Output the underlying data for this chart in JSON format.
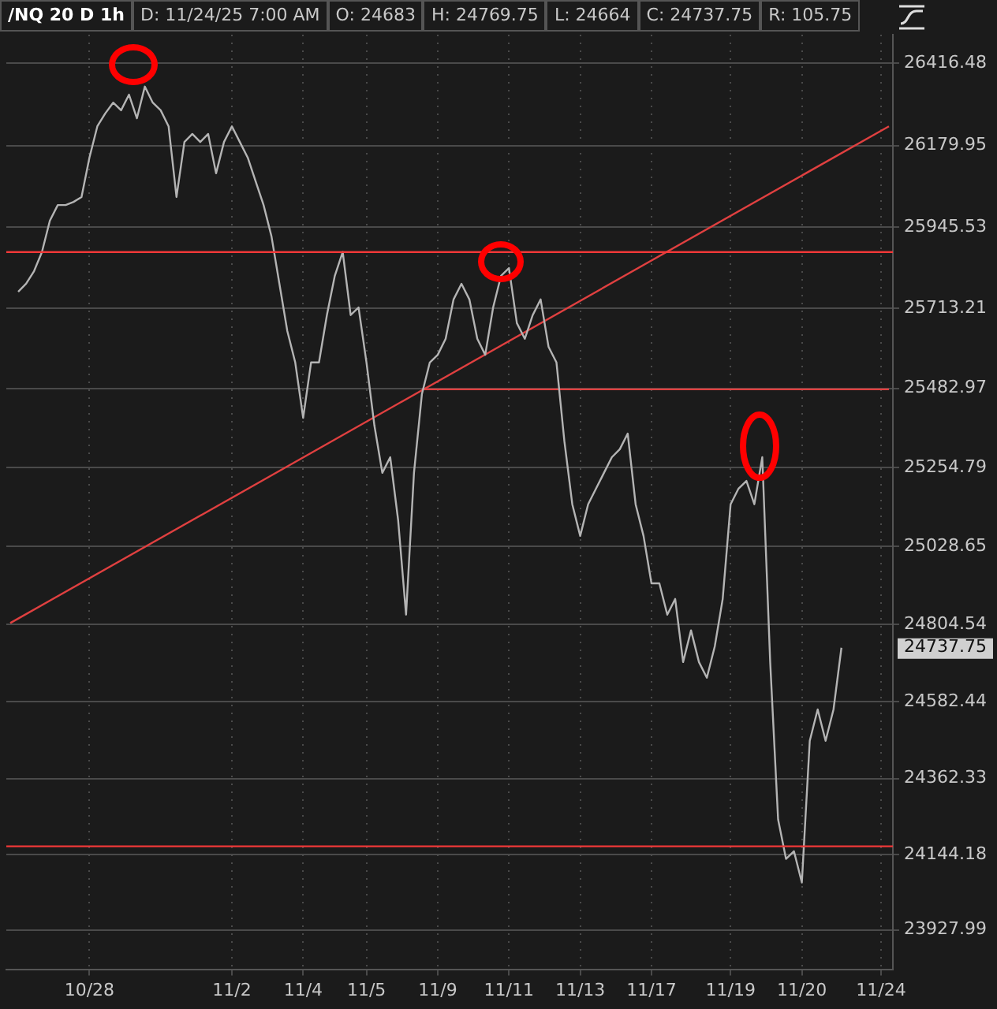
{
  "chart_data": {
    "type": "line",
    "title": "/NQ 20 D 1h",
    "annotations": [
      "D: 11/24/25 7:00 AM",
      "O: 24683",
      "H: 24769.75",
      "L: 24664",
      "C: 24737.75",
      "R: 105.75",
      "24737.75"
    ],
    "categories": [
      null,
      null,
      null,
      null,
      null,
      null,
      null,
      null,
      null,
      null,
      "10/28",
      null,
      null,
      null,
      null,
      null,
      null,
      null,
      null,
      null,
      null,
      null,
      null,
      null,
      null,
      null,
      null,
      null,
      "11/2",
      null,
      null,
      null,
      null,
      null,
      null,
      null,
      null,
      "11/4",
      null,
      null,
      null,
      null,
      null,
      null,
      null,
      "11/5",
      null,
      null,
      null,
      null,
      null,
      null,
      null,
      null,
      "11/9",
      null,
      null,
      null,
      null,
      null,
      null,
      null,
      null,
      "11/11",
      null,
      null,
      null,
      null,
      null,
      null,
      null,
      null,
      "11/13",
      null,
      null,
      null,
      null,
      null,
      null,
      null,
      null,
      "11/17",
      null,
      null,
      null,
      null,
      null,
      null,
      null,
      null,
      null,
      "11/19",
      null,
      null,
      null,
      null,
      null,
      null,
      null,
      null,
      "11/20",
      null,
      null,
      null,
      null,
      null,
      null,
      null,
      null,
      null,
      "11/24",
      null
    ],
    "series": [
      {
        "color": "#b4b4b4",
        "values": [
          null,
          25760,
          25783,
          25819,
          25874,
          25964,
          26009,
          26009,
          26018,
          26032,
          26145,
          26235,
          26272,
          26303,
          26281,
          26326,
          26258,
          26349,
          26303,
          26281,
          26235,
          26032,
          26190,
          26213,
          26190,
          26213,
          26100,
          26190,
          26235,
          26190,
          26145,
          26077,
          26009,
          25919,
          25783,
          25647,
          25557,
          25398,
          25557,
          25557,
          25693,
          25806,
          25874,
          25693,
          25715,
          25557,
          25376,
          25240,
          25285,
          25104,
          24833,
          25240,
          25466,
          25557,
          25579,
          25625,
          25738,
          25783,
          25738,
          25625,
          25579,
          25715,
          25806,
          25828,
          25670,
          25625,
          25693,
          25738,
          25602,
          25557,
          25331,
          25150,
          25059,
          25150,
          25195,
          25240,
          25285,
          25308,
          25353,
          25150,
          25059,
          24923,
          24923,
          24833,
          24878,
          24697,
          24788,
          24697,
          24652,
          24742,
          24878,
          25150,
          25195,
          25217,
          25150,
          25285,
          24697,
          24245,
          24132,
          24154,
          24064,
          24471,
          24561,
          24471,
          24561,
          24738,
          null,
          null,
          null,
          null,
          null,
          null
        ]
      },
      {
        "color": "#e04040",
        "values": [
          24809,
          null,
          null,
          null,
          null,
          null,
          null,
          null,
          null,
          null,
          null,
          null,
          null,
          null,
          null,
          null,
          null,
          null,
          null,
          null,
          null,
          null,
          null,
          null,
          null,
          null,
          null,
          null,
          null,
          null,
          null,
          null,
          null,
          null,
          null,
          null,
          null,
          null,
          null,
          null,
          null,
          null,
          null,
          null,
          null,
          null,
          null,
          null,
          null,
          null,
          null,
          null,
          null,
          null,
          null,
          null,
          null,
          null,
          null,
          null,
          null,
          null,
          null,
          null,
          null,
          null,
          null,
          null,
          null,
          null,
          null,
          null,
          null,
          null,
          null,
          null,
          null,
          null,
          null,
          null,
          null,
          null,
          null,
          null,
          null,
          null,
          null,
          null,
          null,
          null,
          null,
          null,
          null,
          null,
          null,
          null,
          null,
          null,
          null,
          null,
          null,
          null,
          null,
          null,
          null,
          null,
          null,
          null,
          null,
          null,
          null,
          26235
        ]
      },
      {
        "color": "#e04040",
        "values": [
          null,
          null,
          null,
          null,
          null,
          null,
          null,
          null,
          null,
          null,
          null,
          null,
          null,
          null,
          null,
          null,
          null,
          null,
          null,
          null,
          null,
          null,
          null,
          null,
          null,
          null,
          null,
          null,
          null,
          null,
          null,
          null,
          null,
          null,
          null,
          null,
          null,
          null,
          null,
          null,
          null,
          null,
          null,
          null,
          null,
          null,
          null,
          null,
          null,
          null,
          null,
          null,
          25480,
          25480,
          25480,
          25480,
          25480,
          25480,
          25480,
          25480,
          25480,
          25480,
          25480,
          25480,
          25480,
          25480,
          25480,
          25480,
          25480,
          25480,
          25480,
          25480,
          25480,
          25480,
          25480,
          25480,
          25480,
          25480,
          25480,
          25480,
          25480,
          25480,
          25480,
          25480,
          25480,
          25480,
          25480,
          25480,
          25480,
          25480,
          25480,
          25480,
          25480,
          25480,
          25480,
          25480,
          25480,
          25480,
          25480,
          25480,
          25480,
          25480,
          25480,
          25480,
          25480,
          25480,
          25480,
          25480,
          25480,
          25480,
          25480,
          25480
        ]
      }
    ],
    "ref_lines": [
      {
        "axis": "y",
        "value": 25874,
        "color": "#f03838"
      },
      {
        "axis": "y",
        "value": 24168,
        "color": "#f03838"
      }
    ],
    "ylim": [
      23815,
      26498
    ],
    "yticks": [
      23927.99,
      24144.18,
      24362.33,
      24582.44,
      24804.54,
      25028.65,
      25254.79,
      25482.97,
      25713.21,
      25945.53,
      26179.95,
      26416.48
    ],
    "grid": true,
    "legend": false,
    "marker": "none",
    "line_style": "solid"
  }
}
